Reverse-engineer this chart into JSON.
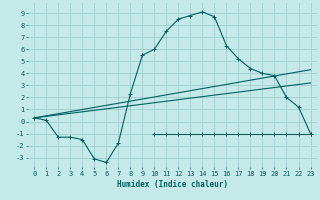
{
  "xlabel": "Humidex (Indice chaleur)",
  "background_color": "#c5e8e8",
  "grid_color": "#9ecece",
  "line_color": "#006060",
  "xlim": [
    -0.5,
    23.5
  ],
  "ylim": [
    -3.8,
    9.8
  ],
  "xticks": [
    0,
    1,
    2,
    3,
    4,
    5,
    6,
    7,
    8,
    9,
    10,
    11,
    12,
    13,
    14,
    15,
    16,
    17,
    18,
    19,
    20,
    21,
    22,
    23
  ],
  "yticks": [
    -3,
    -2,
    -1,
    0,
    1,
    2,
    3,
    4,
    5,
    6,
    7,
    8,
    9
  ],
  "curve_x": [
    0,
    1,
    2,
    3,
    4,
    5,
    6,
    7,
    8,
    9,
    10,
    11,
    12,
    13,
    14,
    15,
    16,
    17,
    18,
    19,
    20,
    21,
    22,
    23
  ],
  "curve_y": [
    0.3,
    0.1,
    -1.3,
    -1.3,
    -1.5,
    -3.1,
    -3.4,
    -1.8,
    2.3,
    5.5,
    6.0,
    7.5,
    8.5,
    8.8,
    9.1,
    8.7,
    6.3,
    5.2,
    4.4,
    4.0,
    3.8,
    2.0,
    1.2,
    -1.0
  ],
  "flat_x": [
    10,
    11,
    12,
    13,
    14,
    15,
    16,
    17,
    18,
    19,
    20,
    21,
    22,
    23
  ],
  "flat_y": [
    -1.0,
    -1.0,
    -1.0,
    -1.0,
    -1.0,
    -1.0,
    -1.0,
    -1.0,
    -1.0,
    -1.0,
    -1.0,
    -1.0,
    -1.0,
    -1.0
  ],
  "line3_x": [
    0,
    23
  ],
  "line3_y": [
    0.3,
    4.3
  ],
  "line4_x": [
    0,
    23
  ],
  "line4_y": [
    0.3,
    3.2
  ],
  "xlabel_fontsize": 5.5,
  "tick_fontsize": 5.0
}
